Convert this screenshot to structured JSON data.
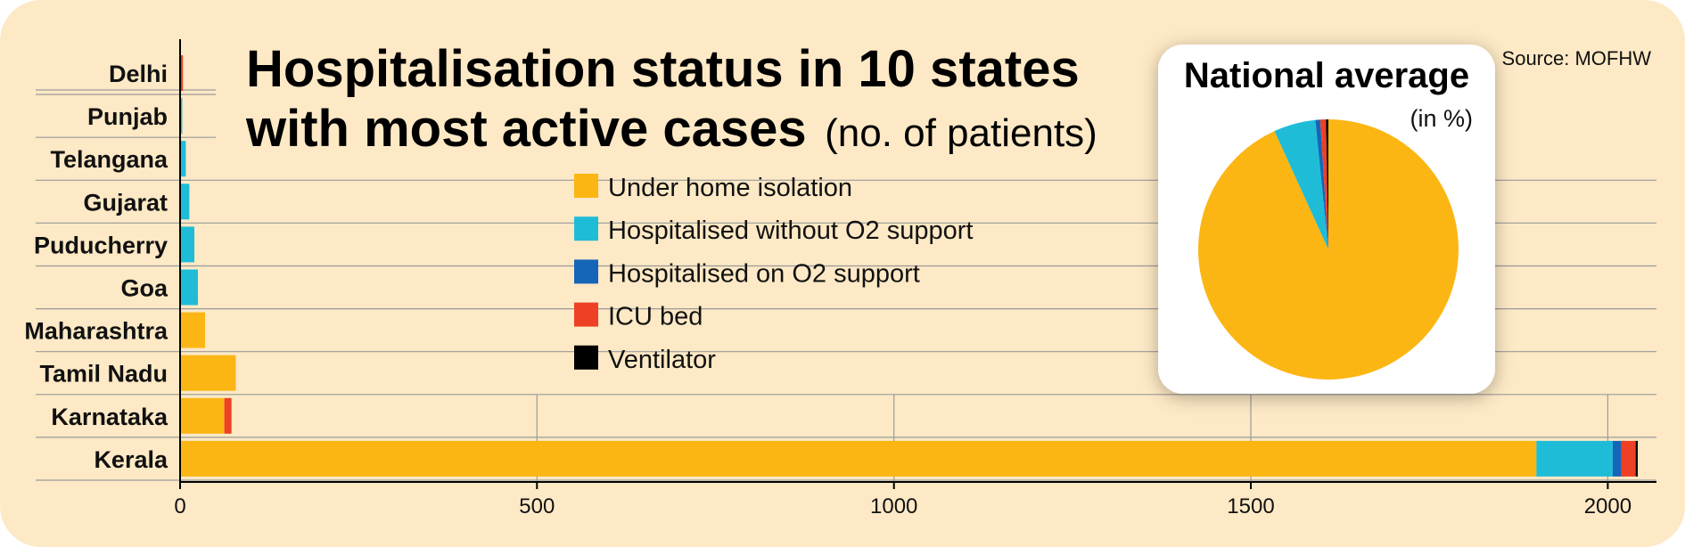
{
  "title": {
    "line1": "Hospitalisation status in 10 states",
    "line2_bold": "with most active cases",
    "line2_unit": "(no. of patients)"
  },
  "source": "Source: MOFHW",
  "colors": {
    "home": "#fbb614",
    "no_o2": "#1fbcd8",
    "o2": "#1565b8",
    "icu": "#ed4024",
    "vent": "#000000",
    "background": "#fde9c5",
    "gridline": "#9a9a9a"
  },
  "legend": [
    {
      "label": "Under home isolation",
      "color": "#fbb614"
    },
    {
      "label": "Hospitalised without O2 support",
      "color": "#1fbcd8"
    },
    {
      "label": "Hospitalised on O2 support",
      "color": "#1565b8"
    },
    {
      "label": "ICU bed",
      "color": "#ed4024"
    },
    {
      "label": "Ventilator",
      "color": "#000000"
    }
  ],
  "chart_data": [
    {
      "type": "bar",
      "orientation": "horizontal",
      "stacked": true,
      "unit": "no. of patients",
      "categories": [
        "Delhi",
        "Punjab",
        "Telangana",
        "Gujarat",
        "Puducherry",
        "Goa",
        "Maharashtra",
        "Tamil Nadu",
        "Karnataka",
        "Kerala"
      ],
      "series": [
        {
          "name": "Under home isolation",
          "color": "#fbb614",
          "values": [
            0,
            0,
            0,
            0,
            0,
            0,
            35,
            78,
            62,
            1900
          ]
        },
        {
          "name": "Hospitalised without O2 support",
          "color": "#1fbcd8",
          "values": [
            0,
            3,
            8,
            13,
            20,
            25,
            0,
            0,
            0,
            107
          ]
        },
        {
          "name": "Hospitalised on O2 support",
          "color": "#1565b8",
          "values": [
            0,
            0,
            0,
            0,
            0,
            0,
            0,
            0,
            0,
            12
          ]
        },
        {
          "name": "ICU bed",
          "color": "#ed4024",
          "values": [
            4,
            0,
            0,
            0,
            0,
            0,
            0,
            0,
            10,
            20
          ]
        },
        {
          "name": "Ventilator",
          "color": "#000000",
          "values": [
            0,
            0,
            0,
            0,
            0,
            0,
            0,
            0,
            0,
            3
          ]
        }
      ],
      "x_ticks": [
        0,
        500,
        1000,
        1500,
        2000
      ],
      "xlim": [
        0,
        2050
      ],
      "grid": "vertical"
    },
    {
      "type": "pie",
      "title": "National average",
      "subtitle": "(in %)",
      "slices": [
        {
          "name": "Under home isolation",
          "value": 93.2,
          "color": "#fbb614"
        },
        {
          "name": "Hospitalised without O2 support",
          "value": 5.2,
          "color": "#1fbcd8"
        },
        {
          "name": "Hospitalised on O2 support",
          "value": 0.6,
          "color": "#1565b8"
        },
        {
          "name": "ICU bed",
          "value": 0.7,
          "color": "#ed4024"
        },
        {
          "name": "Ventilator",
          "value": 0.3,
          "color": "#000000"
        }
      ]
    }
  ]
}
